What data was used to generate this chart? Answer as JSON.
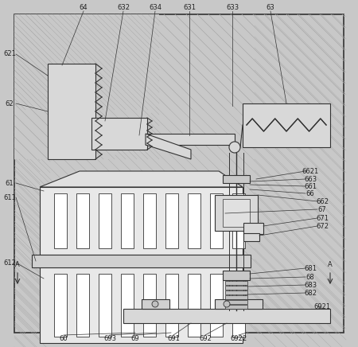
{
  "fig_width": 4.5,
  "fig_height": 4.36,
  "dpi": 100,
  "bg_color": "#c8c8c8",
  "frame_color": "#c0c0c0",
  "line_color": "#333333",
  "white": "#ffffff",
  "light_gray": "#e8e8e8",
  "mid_gray": "#d0d0d0",
  "dark_gray": "#a0a0a0",
  "font_size": 6.0
}
